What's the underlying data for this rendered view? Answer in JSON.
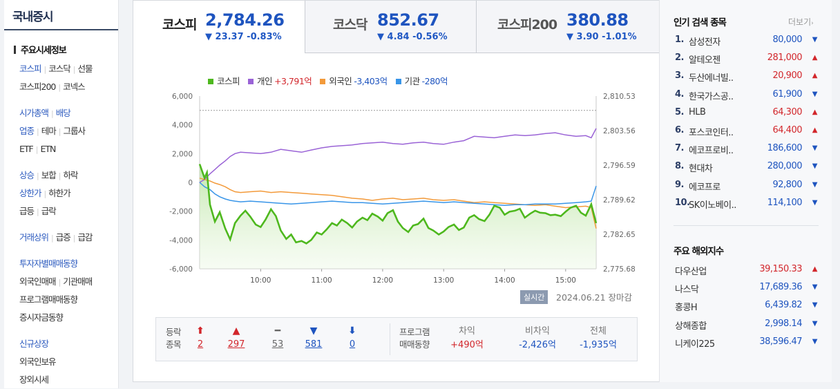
{
  "sidebar": {
    "title": "국내증시",
    "section": "주요시세정보",
    "groups": [
      [
        [
          {
            "t": "코스피",
            "c": "blue"
          },
          {
            "t": "코스닥"
          },
          {
            "t": "선물"
          }
        ],
        [
          {
            "t": "코스피200"
          },
          {
            "t": "코넥스"
          }
        ]
      ],
      [
        [
          {
            "t": "시가총액",
            "c": "blue"
          },
          {
            "t": "배당",
            "c": "blue"
          }
        ],
        [
          {
            "t": "업종",
            "c": "blue"
          },
          {
            "t": "테마"
          },
          {
            "t": "그룹사"
          }
        ],
        [
          {
            "t": "ETF"
          },
          {
            "t": "ETN"
          }
        ]
      ],
      [
        [
          {
            "t": "상승",
            "c": "blue"
          },
          {
            "t": "보합"
          },
          {
            "t": "하락"
          }
        ],
        [
          {
            "t": "상한가",
            "c": "blue"
          },
          {
            "t": "하한가"
          }
        ],
        [
          {
            "t": "급등"
          },
          {
            "t": "급락"
          }
        ]
      ],
      [
        [
          {
            "t": "거래상위",
            "c": "blue"
          },
          {
            "t": "급증"
          },
          {
            "t": "급감"
          }
        ]
      ],
      [
        [
          {
            "t": "투자자별매매동향",
            "c": "blue"
          }
        ],
        [
          {
            "t": "외국인매매"
          },
          {
            "t": "기관매매"
          }
        ],
        [
          {
            "t": "프로그램매매동향"
          }
        ],
        [
          {
            "t": "증시자금동향"
          }
        ]
      ],
      [
        [
          {
            "t": "신규상장",
            "c": "blue"
          }
        ],
        [
          {
            "t": "외국인보유"
          }
        ],
        [
          {
            "t": "장외시세"
          }
        ]
      ]
    ]
  },
  "tabs": [
    {
      "name": "코스피",
      "value": "2,784.26",
      "change": "▼ 23.37 -0.83%"
    },
    {
      "name": "코스닥",
      "value": "852.67",
      "change": "▼ 4.84 -0.56%"
    },
    {
      "name": "코스피200",
      "value": "380.88",
      "change": "▼ 3.90 -1.01%"
    }
  ],
  "legend": [
    {
      "label": "코스피",
      "value": "",
      "color": "#4eb81e"
    },
    {
      "label": "개인",
      "value": "+3,791억",
      "color": "#9a63d6",
      "dir": "up"
    },
    {
      "label": "외국인",
      "value": "-3,403억",
      "color": "#f39a3a",
      "dir": "dn"
    },
    {
      "label": "기관",
      "value": "-280억",
      "color": "#3895e8",
      "dir": "dn"
    }
  ],
  "realtime_label": "실시간",
  "date_label": "2024.06.21 장마감",
  "chart_data": {
    "type": "line",
    "x_ticks": [
      "10:00",
      "11:00",
      "12:00",
      "13:00",
      "14:00",
      "15:00"
    ],
    "y_left_ticks": [
      "6,000",
      "4,000",
      "2,000",
      "0",
      "-2,000",
      "-4,000",
      "-6,000"
    ],
    "y_right_ticks": [
      "2,810.53",
      "2,803.56",
      "2,796.59",
      "2,789.62",
      "2,782.65",
      "2,775.68"
    ],
    "left_range": [
      -6000,
      6000
    ],
    "right_range": [
      2775.68,
      2810.53
    ],
    "prev_close": 2807.63,
    "x_range_hours": [
      9.0,
      15.5
    ],
    "series": [
      {
        "name": "코스피",
        "axis": "right",
        "color": "#4eb81e",
        "x": [
          9.0,
          9.08,
          9.12,
          9.17,
          9.25,
          9.33,
          9.42,
          9.5,
          9.58,
          9.67,
          9.75,
          9.83,
          9.92,
          10.0,
          10.08,
          10.17,
          10.25,
          10.33,
          10.42,
          10.5,
          10.58,
          10.67,
          10.75,
          10.83,
          10.92,
          11.0,
          11.08,
          11.17,
          11.25,
          11.33,
          11.42,
          11.5,
          11.58,
          11.67,
          11.75,
          11.83,
          11.92,
          12.0,
          12.08,
          12.17,
          12.25,
          12.33,
          12.42,
          12.5,
          12.58,
          12.67,
          12.75,
          12.83,
          12.92,
          13.0,
          13.08,
          13.17,
          13.25,
          13.33,
          13.42,
          13.5,
          13.58,
          13.67,
          13.75,
          13.83,
          13.92,
          14.0,
          14.08,
          14.17,
          14.25,
          14.33,
          14.42,
          14.5,
          14.58,
          14.67,
          14.75,
          14.83,
          14.92,
          15.0,
          15.08,
          15.17,
          15.25,
          15.33,
          15.42,
          15.5
        ],
        "values": [
          2796.8,
          2794.0,
          2795.1,
          2788.6,
          2785.2,
          2787.1,
          2783.8,
          2781.6,
          2784.9,
          2786.4,
          2787.4,
          2786.2,
          2784.6,
          2784.1,
          2785.6,
          2787.7,
          2786.3,
          2783.4,
          2781.7,
          2782.6,
          2781.0,
          2781.3,
          2780.8,
          2781.5,
          2783.0,
          2782.6,
          2783.6,
          2784.9,
          2784.4,
          2785.6,
          2784.9,
          2784.0,
          2785.2,
          2786.0,
          2785.5,
          2786.8,
          2786.2,
          2785.4,
          2786.9,
          2787.5,
          2785.2,
          2783.9,
          2783.1,
          2784.4,
          2784.7,
          2785.8,
          2783.9,
          2783.4,
          2782.6,
          2783.2,
          2784.1,
          2784.6,
          2783.5,
          2784.0,
          2786.0,
          2786.5,
          2785.7,
          2785.3,
          2786.6,
          2788.4,
          2788.0,
          2786.6,
          2787.2,
          2787.4,
          2787.8,
          2786.0,
          2786.8,
          2787.4,
          2787.0,
          2786.9,
          2786.5,
          2786.6,
          2786.3,
          2787.2,
          2788.0,
          2788.4,
          2787.0,
          2786.4,
          2788.7,
          2784.9
        ]
      },
      {
        "name": "개인",
        "axis": "left",
        "color": "#9a63d6",
        "x": [
          9.0,
          9.08,
          9.17,
          9.25,
          9.33,
          9.42,
          9.5,
          9.58,
          9.67,
          9.83,
          10.0,
          10.17,
          10.33,
          10.5,
          10.67,
          10.83,
          11.0,
          11.17,
          11.33,
          11.5,
          11.67,
          11.83,
          12.0,
          12.17,
          12.33,
          12.5,
          12.67,
          12.83,
          13.0,
          13.17,
          13.33,
          13.5,
          13.67,
          13.83,
          14.0,
          14.17,
          14.33,
          14.5,
          14.67,
          14.83,
          15.0,
          15.17,
          15.33,
          15.42,
          15.5
        ],
        "values": [
          0,
          200,
          600,
          900,
          1200,
          1500,
          1800,
          2000,
          2100,
          2050,
          2000,
          2100,
          2300,
          2200,
          2100,
          2250,
          2400,
          2500,
          2550,
          2600,
          2700,
          2750,
          2800,
          2700,
          2650,
          2750,
          2800,
          2700,
          2650,
          2800,
          2900,
          3200,
          3150,
          3100,
          3200,
          3300,
          3250,
          3300,
          3400,
          3450,
          3300,
          3200,
          3250,
          3100,
          3750
        ]
      },
      {
        "name": "외국인",
        "axis": "left",
        "color": "#f39a3a",
        "x": [
          9.0,
          9.08,
          9.17,
          9.25,
          9.33,
          9.42,
          9.5,
          9.58,
          9.67,
          9.83,
          10.0,
          10.17,
          10.33,
          10.5,
          10.67,
          10.83,
          11.0,
          11.17,
          11.33,
          11.5,
          11.67,
          11.83,
          12.0,
          12.17,
          12.33,
          12.5,
          12.67,
          12.83,
          13.0,
          13.17,
          13.33,
          13.5,
          13.67,
          13.83,
          14.0,
          14.17,
          14.33,
          14.5,
          14.67,
          14.83,
          15.0,
          15.17,
          15.33,
          15.42,
          15.5
        ],
        "values": [
          300,
          200,
          100,
          -50,
          -150,
          -300,
          -500,
          -650,
          -700,
          -650,
          -600,
          -700,
          -650,
          -700,
          -750,
          -800,
          -850,
          -900,
          -1000,
          -1100,
          -1150,
          -1250,
          -1150,
          -1100,
          -1200,
          -1150,
          -1100,
          -1200,
          -1250,
          -1200,
          -1300,
          -1400,
          -1350,
          -1400,
          -1450,
          -1500,
          -1550,
          -1600,
          -1550,
          -1650,
          -1750,
          -1700,
          -1650,
          -1750,
          -3200
        ]
      },
      {
        "name": "기관",
        "axis": "left",
        "color": "#3895e8",
        "x": [
          9.0,
          9.08,
          9.17,
          9.25,
          9.33,
          9.42,
          9.5,
          9.58,
          9.67,
          9.83,
          10.0,
          10.17,
          10.33,
          10.5,
          10.67,
          10.83,
          11.0,
          11.17,
          11.33,
          11.5,
          11.67,
          11.83,
          12.0,
          12.17,
          12.33,
          12.5,
          12.67,
          12.83,
          13.0,
          13.17,
          13.33,
          13.5,
          13.67,
          13.83,
          14.0,
          14.17,
          14.33,
          14.5,
          14.67,
          14.83,
          15.0,
          15.17,
          15.33,
          15.42,
          15.5
        ],
        "values": [
          0,
          -300,
          -500,
          -800,
          -1000,
          -1150,
          -1250,
          -1300,
          -1350,
          -1300,
          -1350,
          -1400,
          -1450,
          -1500,
          -1450,
          -1400,
          -1350,
          -1300,
          -1350,
          -1400,
          -1400,
          -1450,
          -1500,
          -1450,
          -1400,
          -1350,
          -1300,
          -1350,
          -1400,
          -1350,
          -1400,
          -1450,
          -1500,
          -1550,
          -1600,
          -1550,
          -1550,
          -1500,
          -1500,
          -1500,
          -1450,
          -1400,
          -1350,
          -1300,
          -250
        ]
      }
    ]
  },
  "stats": {
    "label_a": "등락",
    "label_b": "종목",
    "items": [
      {
        "icon": "⬆",
        "value": "2",
        "cls": "up",
        "name": "upper-limit"
      },
      {
        "icon": "▲",
        "value": "297",
        "cls": "up",
        "name": "rise"
      },
      {
        "icon": "━",
        "value": "53",
        "cls": "flat",
        "name": "unchanged"
      },
      {
        "icon": "▼",
        "value": "581",
        "cls": "dn",
        "name": "fall"
      },
      {
        "icon": "⬇",
        "value": "0",
        "cls": "dn",
        "name": "lower-limit"
      }
    ],
    "prog_label_a": "프로그램",
    "prog_label_b": "매매동향",
    "prog": [
      {
        "h": "차익",
        "v": "+490억",
        "cls": "up"
      },
      {
        "h": "비차익",
        "v": "-2,426억",
        "cls": "dn"
      },
      {
        "h": "전체",
        "v": "-1,935억",
        "cls": "dn"
      }
    ]
  },
  "popular": {
    "title": "인기 검색 종목",
    "more": "더보기",
    "items": [
      {
        "no": "1.",
        "name": "삼성전자",
        "price": "80,000",
        "dir": "dn"
      },
      {
        "no": "2.",
        "name": "알테오젠",
        "price": "281,000",
        "dir": "up"
      },
      {
        "no": "3.",
        "name": "두산에너빌..",
        "price": "20,900",
        "dir": "up"
      },
      {
        "no": "4.",
        "name": "한국가스공..",
        "price": "61,900",
        "dir": "dn"
      },
      {
        "no": "5.",
        "name": "HLB",
        "price": "64,300",
        "dir": "up"
      },
      {
        "no": "6.",
        "name": "포스코인터..",
        "price": "64,400",
        "dir": "up"
      },
      {
        "no": "7.",
        "name": "에코프로비..",
        "price": "186,600",
        "dir": "dn"
      },
      {
        "no": "8.",
        "name": "현대차",
        "price": "280,000",
        "dir": "dn"
      },
      {
        "no": "9.",
        "name": "에코프로",
        "price": "92,800",
        "dir": "dn"
      },
      {
        "no": "10.",
        "name": "SK이노베이..",
        "price": "114,100",
        "dir": "dn"
      }
    ]
  },
  "overseas": {
    "title": "주요 해외지수",
    "items": [
      {
        "name": "다우산업",
        "value": "39,150.33",
        "dir": "up"
      },
      {
        "name": "나스닥",
        "value": "17,689.36",
        "dir": "dn"
      },
      {
        "name": "홍콩H",
        "value": "6,439.82",
        "dir": "dn"
      },
      {
        "name": "상해종합",
        "value": "2,998.14",
        "dir": "dn"
      },
      {
        "name": "니케이225",
        "value": "38,596.47",
        "dir": "dn"
      }
    ]
  }
}
